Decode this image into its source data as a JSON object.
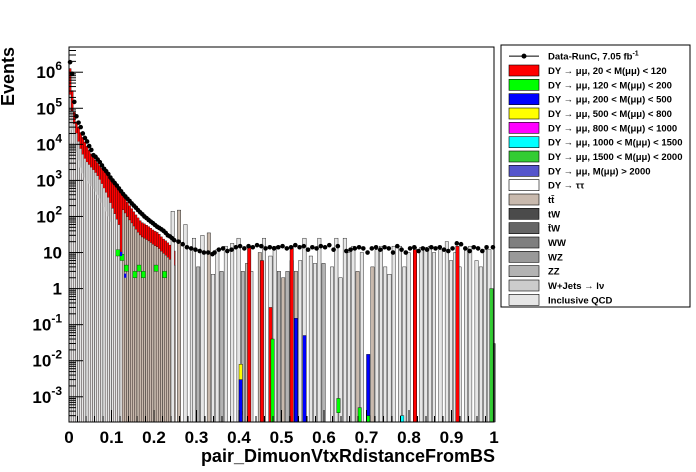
{
  "chart_data": {
    "type": "bar",
    "stacked": true,
    "xlabel": "pair_DimuonVtxRdistanceFromBS",
    "ylabel": "Events",
    "yscale": "log",
    "xlim": [
      0,
      1
    ],
    "ylim": [
      0.0002,
      5000000
    ],
    "x_ticks": [
      "0",
      "0.1",
      "0.2",
      "0.3",
      "0.4",
      "0.5",
      "0.6",
      "0.7",
      "0.8",
      "0.9",
      "1"
    ],
    "y_ticks": [
      "10^{-3}",
      "10^{-2}",
      "10^{-1}",
      "1",
      "10",
      "10^{2}",
      "10^{3}",
      "10^{4}",
      "10^{5}",
      "10^{6}"
    ],
    "bin_width": 0.005,
    "legend_position": "right",
    "legend": [
      {
        "key": "data",
        "label": "Data-RunC, 7.05 fb",
        "sup": "-1",
        "color": "#000000",
        "style": "marker"
      },
      {
        "key": "dy20",
        "label": "DY → μμ, 20 < M(μμ) <  120",
        "color": "#ff0000",
        "style": "box"
      },
      {
        "key": "dy120",
        "label": "DY → μμ, 120 < M(μμ) <  200",
        "color": "#00ff00",
        "style": "box"
      },
      {
        "key": "dy200",
        "label": "DY → μμ, 200 < M(μμ) <  500",
        "color": "#0000ff",
        "style": "box"
      },
      {
        "key": "dy500",
        "label": "DY → μμ, 500 < M(μμ) <  800",
        "color": "#ffff00",
        "style": "box"
      },
      {
        "key": "dy800",
        "label": "DY → μμ, 800 < M(μμ) < 1000",
        "color": "#ff00ff",
        "style": "box"
      },
      {
        "key": "dy1000",
        "label": "DY → μμ, 1000 < M(μμ) < 1500",
        "color": "#00ffff",
        "style": "box"
      },
      {
        "key": "dy1500",
        "label": "DY → μμ, 1500 < M(μμ) < 2000",
        "color": "#33cc33",
        "style": "box"
      },
      {
        "key": "dy2000",
        "label": "DY → μμ, M(μμ) > 2000",
        "color": "#5555cc",
        "style": "box"
      },
      {
        "key": "dytt",
        "label": "DY → ττ",
        "color": "#ffffff",
        "style": "box"
      },
      {
        "key": "ttbar",
        "label": "tt̄",
        "color": "#c8b9ad",
        "style": "box"
      },
      {
        "key": "tw",
        "label": "tW",
        "color": "#4b4b4b",
        "style": "box"
      },
      {
        "key": "tbarw",
        "label": "t̄W",
        "color": "#656565",
        "style": "box"
      },
      {
        "key": "ww",
        "label": "WW",
        "color": "#7f7f7f",
        "style": "box"
      },
      {
        "key": "wz",
        "label": "WZ",
        "color": "#999999",
        "style": "box"
      },
      {
        "key": "zz",
        "label": "ZZ",
        "color": "#b3b3b3",
        "style": "box"
      },
      {
        "key": "wjets",
        "label": "W+Jets → lν",
        "color": "#cccccc",
        "style": "box"
      },
      {
        "key": "qcd",
        "label": "Inclusive QCD",
        "color": "#e6e6e6",
        "style": "box"
      }
    ],
    "stack_order": [
      "qcd",
      "wjets",
      "zz",
      "wz",
      "ww",
      "tbarw",
      "tw",
      "ttbar",
      "dytt",
      "dy2000",
      "dy1500",
      "dy1000",
      "dy800",
      "dy500",
      "dy200",
      "dy120",
      "dy20"
    ],
    "data_points": [
      [
        0.0025,
        1900000
      ],
      [
        0.0075,
        900000
      ],
      [
        0.0125,
        150000
      ],
      [
        0.0175,
        60000
      ],
      [
        0.0225,
        40000
      ],
      [
        0.0275,
        30000
      ],
      [
        0.0325,
        20000
      ],
      [
        0.0375,
        15000
      ],
      [
        0.0425,
        12000
      ],
      [
        0.0475,
        9000
      ],
      [
        0.0525,
        7000
      ],
      [
        0.0575,
        5000
      ],
      [
        0.0625,
        4500
      ],
      [
        0.0675,
        3800
      ],
      [
        0.0725,
        3200
      ],
      [
        0.0775,
        2600
      ],
      [
        0.0825,
        2100
      ],
      [
        0.0875,
        1800
      ],
      [
        0.0925,
        1500
      ],
      [
        0.0975,
        1200
      ],
      [
        0.1025,
        1000
      ],
      [
        0.1075,
        850
      ],
      [
        0.1125,
        720
      ],
      [
        0.1175,
        600
      ],
      [
        0.1225,
        500
      ],
      [
        0.1275,
        420
      ],
      [
        0.1325,
        360
      ],
      [
        0.1375,
        310
      ],
      [
        0.1425,
        270
      ],
      [
        0.1475,
        230
      ],
      [
        0.1525,
        200
      ],
      [
        0.1575,
        175
      ],
      [
        0.1625,
        150
      ],
      [
        0.1675,
        130
      ],
      [
        0.1725,
        115
      ],
      [
        0.1775,
        100
      ],
      [
        0.1825,
        90
      ],
      [
        0.1875,
        80
      ],
      [
        0.1925,
        72
      ],
      [
        0.1975,
        65
      ],
      [
        0.2025,
        58
      ],
      [
        0.2075,
        52
      ],
      [
        0.2125,
        48
      ],
      [
        0.2175,
        44
      ],
      [
        0.2225,
        40
      ],
      [
        0.2275,
        35
      ],
      [
        0.2325,
        30
      ],
      [
        0.2375,
        28
      ],
      [
        0.2425,
        25
      ],
      [
        0.2475,
        22
      ],
      [
        0.2575,
        20
      ],
      [
        0.2675,
        17
      ],
      [
        0.2775,
        14
      ],
      [
        0.2875,
        13
      ],
      [
        0.2975,
        12
      ],
      [
        0.3075,
        11
      ],
      [
        0.3175,
        10
      ],
      [
        0.3275,
        10
      ],
      [
        0.3375,
        9
      ],
      [
        0.3425,
        10
      ],
      [
        0.3525,
        12
      ],
      [
        0.3625,
        13
      ],
      [
        0.3725,
        11
      ],
      [
        0.3825,
        12
      ],
      [
        0.3925,
        14
      ],
      [
        0.4025,
        15
      ],
      [
        0.4125,
        13
      ],
      [
        0.4225,
        15
      ],
      [
        0.4325,
        14
      ],
      [
        0.4425,
        16
      ],
      [
        0.4525,
        15
      ],
      [
        0.4625,
        13
      ],
      [
        0.4725,
        14
      ],
      [
        0.4825,
        13
      ],
      [
        0.4925,
        14
      ],
      [
        0.5025,
        15
      ],
      [
        0.5125,
        13
      ],
      [
        0.5225,
        14
      ],
      [
        0.5325,
        16
      ],
      [
        0.5425,
        14
      ],
      [
        0.5525,
        15
      ],
      [
        0.5625,
        12
      ],
      [
        0.5725,
        14
      ],
      [
        0.5825,
        13
      ],
      [
        0.5925,
        15
      ],
      [
        0.6025,
        14
      ],
      [
        0.6125,
        16
      ],
      [
        0.6225,
        12
      ],
      [
        0.6325,
        15
      ],
      [
        0.6525,
        11
      ],
      [
        0.6625,
        12
      ],
      [
        0.6725,
        13
      ],
      [
        0.6825,
        14
      ],
      [
        0.6925,
        13
      ],
      [
        0.7025,
        10
      ],
      [
        0.7125,
        13
      ],
      [
        0.7225,
        14
      ],
      [
        0.7325,
        12
      ],
      [
        0.7425,
        14
      ],
      [
        0.7525,
        13
      ],
      [
        0.7625,
        10
      ],
      [
        0.7725,
        15
      ],
      [
        0.7825,
        12
      ],
      [
        0.7925,
        10
      ],
      [
        0.8025,
        13
      ],
      [
        0.8125,
        14
      ],
      [
        0.8225,
        11
      ],
      [
        0.8325,
        13
      ],
      [
        0.8425,
        12
      ],
      [
        0.8525,
        14
      ],
      [
        0.8625,
        13
      ],
      [
        0.8725,
        14
      ],
      [
        0.8825,
        12
      ],
      [
        0.8925,
        11
      ],
      [
        0.9025,
        13
      ],
      [
        0.9125,
        18
      ],
      [
        0.9225,
        17
      ],
      [
        0.9325,
        13
      ],
      [
        0.9425,
        11
      ],
      [
        0.9525,
        14
      ],
      [
        0.9625,
        13
      ],
      [
        0.9725,
        11
      ],
      [
        0.9825,
        14
      ],
      [
        0.9975,
        14
      ]
    ],
    "mc_total_profile": [
      [
        0.0,
        2000000
      ],
      [
        0.005,
        800000
      ],
      [
        0.01,
        120000
      ],
      [
        0.015,
        50000
      ],
      [
        0.02,
        35000
      ],
      [
        0.03,
        18000
      ],
      [
        0.04,
        10000
      ],
      [
        0.05,
        6000
      ],
      [
        0.06,
        4000
      ],
      [
        0.07,
        2800
      ],
      [
        0.08,
        2000
      ],
      [
        0.09,
        1500
      ],
      [
        0.1,
        1000
      ],
      [
        0.11,
        700
      ],
      [
        0.12,
        500
      ],
      [
        0.13,
        350
      ],
      [
        0.14,
        220
      ],
      [
        0.15,
        150
      ],
      [
        0.16,
        100
      ],
      [
        0.17,
        70
      ],
      [
        0.18,
        60
      ],
      [
        0.19,
        50
      ],
      [
        0.2,
        40
      ],
      [
        0.21,
        35
      ],
      [
        0.22,
        25
      ],
      [
        0.23,
        20
      ],
      [
        0.24,
        15
      ],
      [
        0.25,
        10
      ]
    ],
    "qcd_profile": [
      [
        0.0,
        400000
      ],
      [
        0.01,
        50000
      ],
      [
        0.02,
        15000
      ],
      [
        0.03,
        6000
      ],
      [
        0.04,
        3500
      ],
      [
        0.05,
        2500
      ],
      [
        0.06,
        1800
      ],
      [
        0.07,
        1200
      ],
      [
        0.08,
        700
      ],
      [
        0.09,
        400
      ],
      [
        0.1,
        200
      ],
      [
        0.11,
        100
      ],
      [
        0.12,
        50
      ],
      [
        0.125,
        1
      ],
      [
        0.13,
        0.0003
      ]
    ],
    "sparse_bins": [
      {
        "x": 0.24,
        "h": 140,
        "c": "#e6e6e6"
      },
      {
        "x": 0.255,
        "h": 150,
        "c": "#c8b9ad"
      },
      {
        "x": 0.27,
        "h": 60,
        "c": "#e6e6e6"
      },
      {
        "x": 0.285,
        "h": 12,
        "c": "#e6e6e6"
      },
      {
        "x": 0.29,
        "h": 25,
        "c": "#e6e6e6"
      },
      {
        "x": 0.3,
        "h": 4,
        "c": "#b3b3b3"
      },
      {
        "x": 0.31,
        "h": 30,
        "c": "#e6e6e6"
      },
      {
        "x": 0.325,
        "h": 35,
        "c": "#c8b9ad"
      },
      {
        "x": 0.335,
        "h": 2.5,
        "c": "#e6e6e6"
      },
      {
        "x": 0.345,
        "h": 12,
        "c": "#e6e6e6"
      },
      {
        "x": 0.355,
        "h": 3,
        "c": "#b3b3b3"
      },
      {
        "x": 0.365,
        "h": 15,
        "c": "#e6e6e6"
      },
      {
        "x": 0.38,
        "h": 18,
        "c": "#e6e6e6"
      },
      {
        "x": 0.395,
        "h": 25,
        "c": "#e6e6e6"
      },
      {
        "x": 0.405,
        "h": 3,
        "c": "#b3b3b3"
      },
      {
        "x": 0.415,
        "h": 5,
        "c": "#c8b9ad"
      },
      {
        "x": 0.425,
        "h": 3,
        "c": "#e6e6e6"
      },
      {
        "x": 0.445,
        "h": 10,
        "c": "#c8b9ad"
      },
      {
        "x": 0.455,
        "h": 25,
        "c": "#e6e6e6"
      },
      {
        "x": 0.47,
        "h": 8,
        "c": "#e6e6e6"
      },
      {
        "x": 0.48,
        "h": 15,
        "c": "#e6e6e6"
      },
      {
        "x": 0.49,
        "h": 3,
        "c": "#b3b3b3"
      },
      {
        "x": 0.5,
        "h": 2,
        "c": "#c8b9ad"
      },
      {
        "x": 0.51,
        "h": 3,
        "c": "#b3b3b3"
      },
      {
        "x": 0.52,
        "h": 6,
        "c": "#e6e6e6"
      },
      {
        "x": 0.53,
        "h": 3,
        "c": "#c8b9ad"
      },
      {
        "x": 0.54,
        "h": 6,
        "c": "#e6e6e6"
      },
      {
        "x": 0.55,
        "h": 25,
        "c": "#e6e6e6"
      },
      {
        "x": 0.565,
        "h": 8,
        "c": "#e6e6e6"
      },
      {
        "x": 0.575,
        "h": 5,
        "c": "#e6e6e6"
      },
      {
        "x": 0.585,
        "h": 25,
        "c": "#e6e6e6"
      },
      {
        "x": 0.595,
        "h": 5,
        "c": "#b3b3b3"
      },
      {
        "x": 0.615,
        "h": 4,
        "c": "#e6e6e6"
      },
      {
        "x": 0.625,
        "h": 25,
        "c": "#e6e6e6"
      },
      {
        "x": 0.635,
        "h": 2,
        "c": "#e6e6e6"
      },
      {
        "x": 0.645,
        "h": 25,
        "c": "#e6e6e6"
      },
      {
        "x": 0.655,
        "h": 10,
        "c": "#e6e6e6"
      },
      {
        "x": 0.665,
        "h": 15,
        "c": "#e6e6e6"
      },
      {
        "x": 0.675,
        "h": 3,
        "c": "#c8b9ad"
      },
      {
        "x": 0.685,
        "h": 10,
        "c": "#e6e6e6"
      },
      {
        "x": 0.71,
        "h": 4,
        "c": "#c8b9ad"
      },
      {
        "x": 0.72,
        "h": 12,
        "c": "#e6e6e6"
      },
      {
        "x": 0.73,
        "h": 15,
        "c": "#e6e6e6"
      },
      {
        "x": 0.74,
        "h": 4,
        "c": "#e6e6e6"
      },
      {
        "x": 0.75,
        "h": 2.5,
        "c": "#e6e6e6"
      },
      {
        "x": 0.76,
        "h": 15,
        "c": "#e6e6e6"
      },
      {
        "x": 0.775,
        "h": 15,
        "c": "#e6e6e6"
      },
      {
        "x": 0.785,
        "h": 4,
        "c": "#e6e6e6"
      },
      {
        "x": 0.795,
        "h": 10,
        "c": "#e6e6e6"
      },
      {
        "x": 0.81,
        "h": 14,
        "c": "#c8b9ad"
      },
      {
        "x": 0.825,
        "h": 14,
        "c": "#e6e6e6"
      },
      {
        "x": 0.835,
        "h": 14,
        "c": "#e6e6e6"
      },
      {
        "x": 0.845,
        "h": 15,
        "c": "#e6e6e6"
      },
      {
        "x": 0.855,
        "h": 10,
        "c": "#e6e6e6"
      },
      {
        "x": 0.87,
        "h": 12,
        "c": "#e6e6e6"
      },
      {
        "x": 0.885,
        "h": 20,
        "c": "#e6e6e6"
      },
      {
        "x": 0.895,
        "h": 6,
        "c": "#e6e6e6"
      },
      {
        "x": 0.905,
        "h": 10,
        "c": "#e6e6e6"
      },
      {
        "x": 0.915,
        "h": 4,
        "c": "#e6e6e6"
      },
      {
        "x": 0.93,
        "h": 13,
        "c": "#e6e6e6"
      },
      {
        "x": 0.94,
        "h": 15,
        "c": "#e6e6e6"
      },
      {
        "x": 0.955,
        "h": 6,
        "c": "#e6e6e6"
      },
      {
        "x": 0.965,
        "h": 4,
        "c": "#e6e6e6"
      },
      {
        "x": 0.975,
        "h": 12,
        "c": "#e6e6e6"
      },
      {
        "x": 0.985,
        "h": 12,
        "c": "#e6e6e6"
      },
      {
        "x": 0.995,
        "h": 0.03,
        "c": "#656565"
      },
      {
        "x": 0.42,
        "h": 15,
        "c": "#ff0000"
      },
      {
        "x": 0.52,
        "h": 15,
        "c": "#ff0000"
      },
      {
        "x": 0.45,
        "h": 6,
        "c": "#ff0000"
      },
      {
        "x": 0.47,
        "h": 0.3,
        "c": "#ff0000"
      },
      {
        "x": 0.81,
        "h": 12,
        "c": "#ff0000"
      },
      {
        "x": 0.91,
        "h": 15,
        "c": "#ff0000"
      },
      {
        "x": 0.475,
        "h": 0.04,
        "c": "#00ff00"
      },
      {
        "x": 0.99,
        "h": 1,
        "c": "#33cc33"
      },
      {
        "x": 0.4,
        "h": 0.008,
        "c": "#ffff00"
      },
      {
        "x": 0.4,
        "h": 0.0008,
        "c": "#00ffff"
      },
      {
        "x": 0.4,
        "h": 0.0004,
        "c": "#ff00ff"
      },
      {
        "x": 0.4,
        "h": 0.003,
        "c": "#0000ff"
      },
      {
        "x": 0.53,
        "h": 0.15,
        "c": "#0000ff"
      },
      {
        "x": 0.55,
        "h": 0.05,
        "c": "#0000ff"
      },
      {
        "x": 0.63,
        "h": 0.0009,
        "c": "#00ff00"
      },
      {
        "x": 0.7,
        "h": 0.015,
        "c": "#0000ff"
      },
      {
        "x": 0.7,
        "h": 0.0003,
        "c": "#00ff00"
      },
      {
        "x": 0.78,
        "h": 0.0003,
        "c": "#00ffff"
      },
      {
        "x": 0.68,
        "h": 0.0005,
        "c": "#00ff00"
      }
    ],
    "lowx_colored_bins": [
      {
        "x": 0.1,
        "red": 500,
        "green": 0,
        "blue": 0
      },
      {
        "x": 0.11,
        "red": 350,
        "green": 8,
        "blue": 0
      },
      {
        "x": 0.12,
        "red": 250,
        "green": 6,
        "blue": 8
      },
      {
        "x": 0.13,
        "red": 180,
        "green": 3,
        "blue": 2
      },
      {
        "x": 0.14,
        "red": 90,
        "green": 0,
        "blue": 0
      },
      {
        "x": 0.15,
        "red": 60,
        "green": 2,
        "blue": 0
      },
      {
        "x": 0.16,
        "red": 40,
        "green": 3,
        "blue": 0
      },
      {
        "x": 0.17,
        "red": 30,
        "green": 2,
        "blue": 0
      },
      {
        "x": 0.2,
        "red": 40,
        "green": 3,
        "blue": 0
      },
      {
        "x": 0.22,
        "red": 40,
        "green": 2,
        "blue": 0
      },
      {
        "x": 0.23,
        "red": 30,
        "green": 0,
        "blue": 0
      }
    ]
  }
}
